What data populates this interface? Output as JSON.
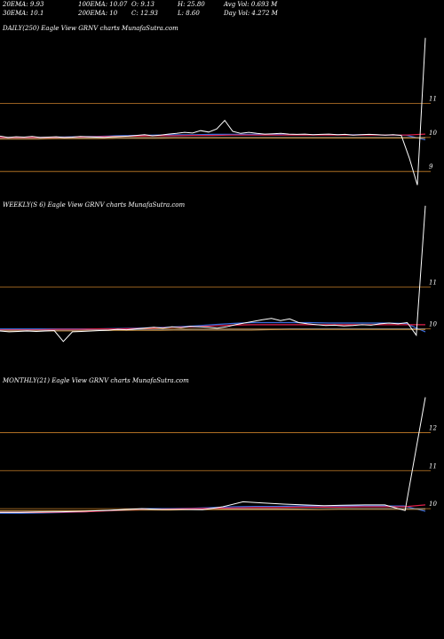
{
  "header": {
    "row1": [
      "20EMA: 9.93",
      "100EMA: 10.07",
      "O: 9.13",
      "H: 25.80",
      "Avg Vol: 0.693  M"
    ],
    "row2": [
      "30EMA: 10.1",
      "200EMA: 10",
      "C: 12.93",
      "L: 8.60",
      "Day Vol: 4.272  M"
    ]
  },
  "colors": {
    "background": "#000000",
    "gridline": "#c87f2a",
    "price": "#ffffff",
    "ema_blue": "#3a6fe0",
    "ema_red": "#e0204a",
    "ema_gray": "#a0a0a0",
    "ema_orange": "#c88a30"
  },
  "chart_data": [
    {
      "type": "line",
      "title": "DAILY(250) Eagle  View  GRNV charts MunafaSutra.com",
      "y_ticks": [
        9,
        10,
        11
      ],
      "ylim": [
        8.3,
        13.0
      ],
      "grid": true,
      "series": [
        {
          "role": "price",
          "values": [
            10.04,
            10.0,
            10.02,
            10.01,
            10.03,
            10.0,
            10.01,
            10.02,
            10.0,
            10.01,
            10.03,
            10.02,
            10.01,
            10.0,
            10.02,
            10.03,
            10.04,
            10.06,
            10.08,
            10.05,
            10.07,
            10.1,
            10.12,
            10.15,
            10.13,
            10.2,
            10.16,
            10.25,
            10.5,
            10.18,
            10.12,
            10.15,
            10.12,
            10.1,
            10.11,
            10.12,
            10.1,
            10.09,
            10.1,
            10.08,
            10.09,
            10.1,
            10.08,
            10.09,
            10.07,
            10.08,
            10.09,
            10.08,
            10.07,
            10.08,
            10.06,
            9.4,
            8.6,
            12.93
          ]
        },
        {
          "role": "ema",
          "values": [
            10.0,
            10.0,
            10.0,
            10.01,
            10.02,
            10.03,
            10.05,
            10.06,
            10.07,
            10.08,
            10.08,
            10.09,
            10.09,
            10.09,
            10.09,
            10.08,
            10.08,
            10.08,
            10.08,
            10.08,
            10.07,
            10.07,
            9.93
          ]
        },
        {
          "role": "ema",
          "values": [
            10.0,
            10.0,
            10.0,
            10.0,
            10.01,
            10.02,
            10.03,
            10.04,
            10.05,
            10.05,
            10.06,
            10.06,
            10.07,
            10.07,
            10.07,
            10.07,
            10.07,
            10.07,
            10.07,
            10.07,
            10.07,
            10.07,
            10.1
          ]
        },
        {
          "role": "ema",
          "values": [
            9.97,
            9.97,
            9.97,
            9.98,
            9.98,
            9.98,
            9.99,
            9.99,
            9.99,
            10.0,
            10.0,
            10.0,
            10.0,
            10.0,
            10.0,
            10.0,
            10.0,
            10.0,
            10.0,
            10.0,
            10.0,
            10.0,
            10.0
          ]
        },
        {
          "role": "ema",
          "values": [
            9.95,
            9.95,
            9.95,
            9.96,
            9.96,
            9.96,
            9.97,
            9.97,
            9.97,
            9.98,
            9.98,
            9.98,
            9.98,
            9.98,
            9.98,
            9.98,
            9.98,
            9.98,
            9.98,
            9.98,
            9.98,
            9.98,
            9.98
          ]
        }
      ]
    },
    {
      "type": "line",
      "title": "WEEKLY(S                    6) Eagle  View  GRNV charts MunafaSutra.com",
      "y_ticks": [
        10,
        11
      ],
      "ylim": [
        9.0,
        12.8
      ],
      "grid": true,
      "series": [
        {
          "role": "price",
          "values": [
            9.95,
            9.93,
            9.94,
            9.95,
            9.94,
            9.95,
            9.96,
            9.7,
            9.93,
            9.94,
            9.95,
            9.96,
            9.97,
            9.99,
            9.98,
            10.0,
            10.02,
            10.04,
            10.02,
            10.05,
            10.03,
            10.06,
            10.05,
            10.04,
            10.02,
            10.05,
            10.1,
            10.14,
            10.18,
            10.22,
            10.25,
            10.2,
            10.24,
            10.15,
            10.12,
            10.1,
            10.08,
            10.09,
            10.07,
            10.08,
            10.1,
            10.09,
            10.12,
            10.14,
            10.12,
            10.15,
            9.85,
            12.93
          ]
        },
        {
          "role": "ema",
          "values": [
            10.0,
            10.0,
            10.0,
            10.0,
            10.0,
            10.0,
            10.01,
            10.02,
            10.03,
            10.05,
            10.07,
            10.1,
            10.13,
            10.15,
            10.15,
            10.15,
            10.15,
            10.14,
            10.14,
            10.14,
            10.14,
            10.13,
            9.93
          ]
        },
        {
          "role": "ema",
          "values": [
            9.98,
            9.98,
            9.98,
            9.99,
            9.99,
            10.0,
            10.0,
            10.01,
            10.02,
            10.04,
            10.05,
            10.07,
            10.09,
            10.1,
            10.1,
            10.1,
            10.1,
            10.1,
            10.1,
            10.1,
            10.1,
            10.1,
            10.1
          ]
        },
        {
          "role": "ema",
          "values": [
            9.97,
            9.97,
            9.97,
            9.97,
            9.97,
            9.98,
            9.98,
            9.98,
            9.98,
            9.98,
            9.99,
            9.99,
            9.99,
            9.99,
            9.99,
            10.0,
            10.0,
            10.0,
            10.0,
            10.0,
            10.0,
            10.0,
            10.0
          ]
        },
        {
          "role": "ema",
          "values": [
            9.95,
            9.95,
            9.95,
            9.95,
            9.95,
            9.96,
            9.96,
            9.96,
            9.96,
            9.97,
            9.97,
            9.97,
            9.97,
            9.97,
            9.98,
            9.98,
            9.98,
            9.98,
            9.98,
            9.98,
            9.98,
            9.98,
            9.98
          ]
        }
      ]
    },
    {
      "type": "line",
      "title": "MONTHLY(21) Eagle  View  GRNV charts MunafaSutra.com",
      "y_ticks": [
        10,
        11,
        12
      ],
      "ylim": [
        9.0,
        13.2
      ],
      "grid": true,
      "series": [
        {
          "role": "price",
          "values": [
            9.9,
            9.9,
            9.91,
            9.92,
            9.93,
            9.95,
            9.97,
            10.0,
            9.98,
            9.98,
            9.97,
            10.05,
            10.18,
            10.15,
            10.12,
            10.1,
            10.08,
            10.09,
            10.1,
            10.1,
            9.95,
            12.93
          ]
        },
        {
          "role": "ema",
          "values": [
            9.88,
            9.88,
            9.89,
            9.9,
            9.92,
            9.95,
            9.98,
            10.0,
            10.0,
            10.01,
            10.03,
            10.05,
            10.06,
            10.06,
            10.07,
            10.07,
            10.07,
            10.07,
            10.07,
            10.07,
            9.93
          ]
        },
        {
          "role": "ema",
          "values": [
            9.9,
            9.9,
            9.9,
            9.91,
            9.92,
            9.94,
            9.96,
            9.98,
            9.99,
            10.0,
            10.01,
            10.02,
            10.03,
            10.03,
            10.04,
            10.04,
            10.04,
            10.05,
            10.05,
            10.05,
            10.1
          ]
        },
        {
          "role": "ema",
          "values": [
            9.93,
            9.93,
            9.93,
            9.94,
            9.94,
            9.95,
            9.96,
            9.97,
            9.97,
            9.98,
            9.98,
            9.99,
            9.99,
            9.99,
            9.99,
            10.0,
            10.0,
            10.0,
            10.0,
            10.0,
            10.0
          ]
        },
        {
          "role": "ema",
          "values": [
            9.95,
            9.95,
            9.95,
            9.95,
            9.95,
            9.96,
            9.96,
            9.96,
            9.96,
            9.97,
            9.97,
            9.97,
            9.97,
            9.97,
            9.97,
            9.97,
            9.98,
            9.98,
            9.98,
            9.98,
            9.98
          ]
        }
      ]
    }
  ]
}
